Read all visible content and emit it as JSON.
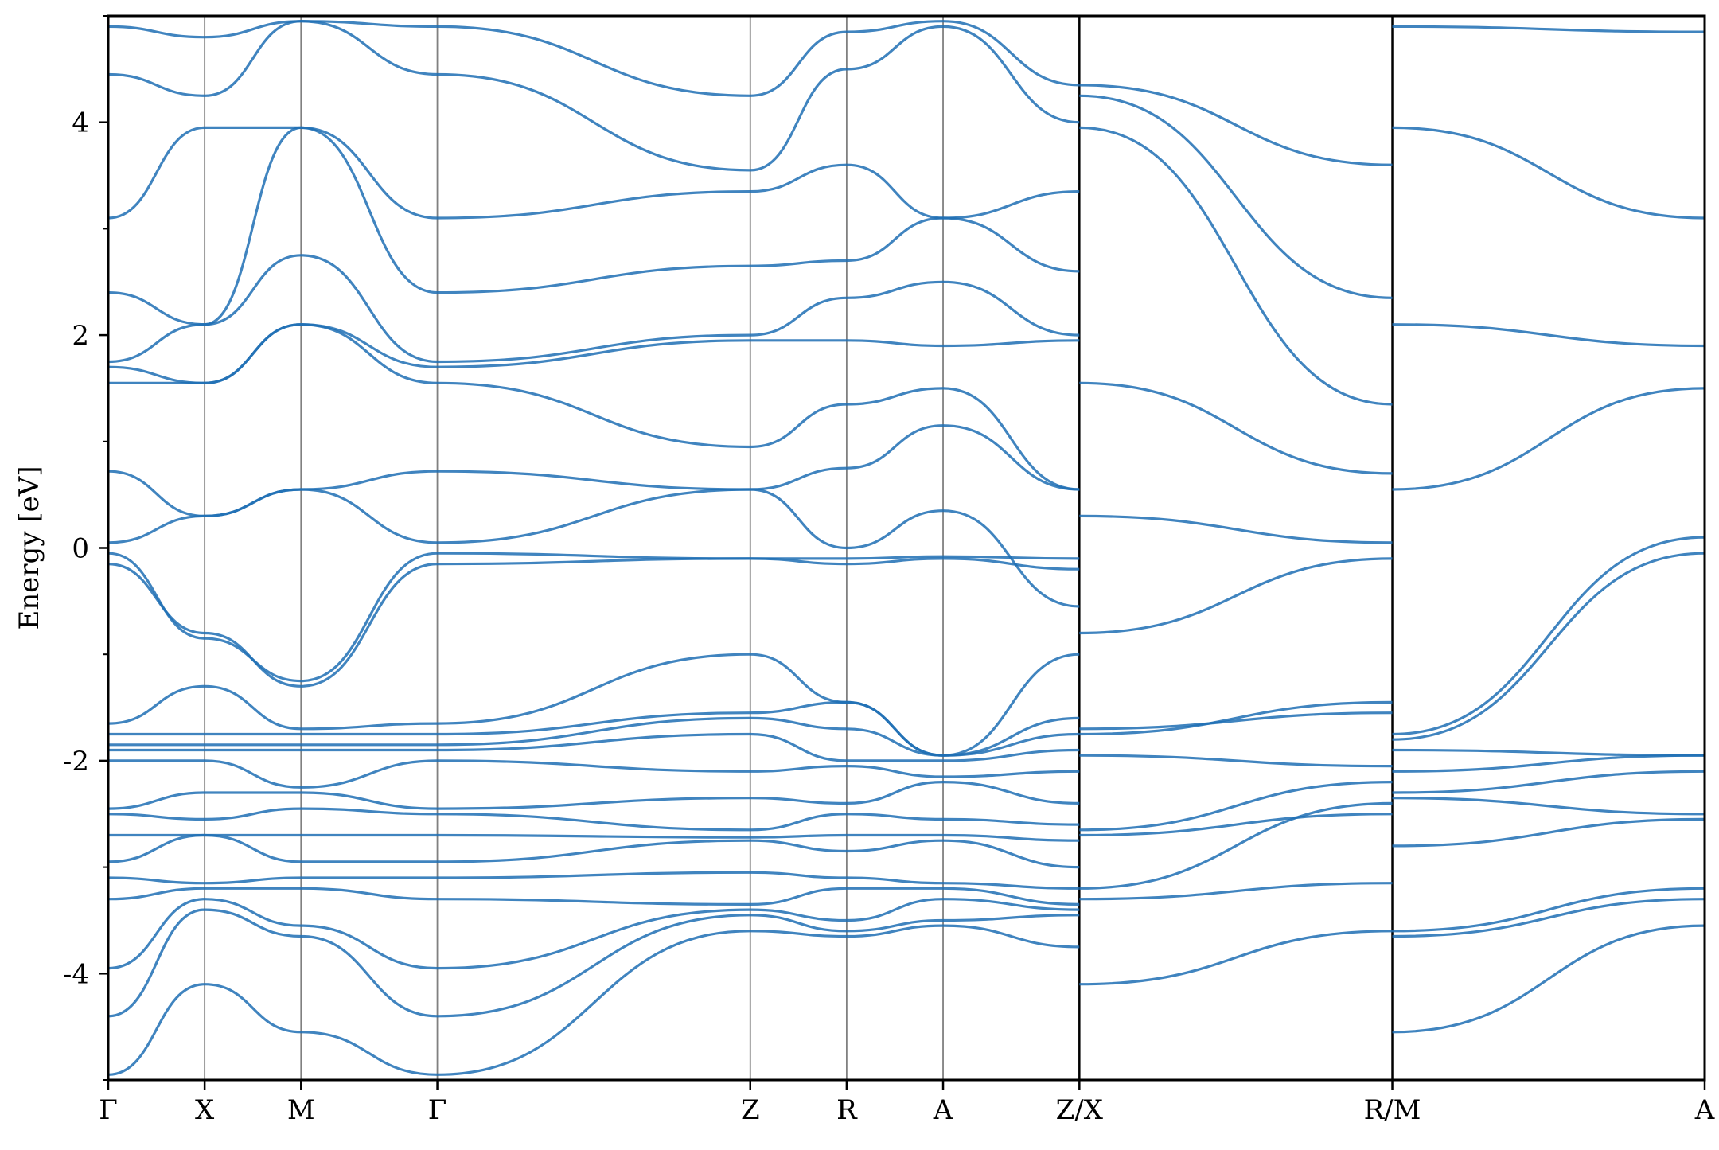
{
  "chart_data": {
    "type": "line",
    "title": "",
    "xlabel": "",
    "ylabel": "Energy [eV]",
    "ylim": [
      -5,
      5
    ],
    "yticks": [
      -4,
      -2,
      0,
      2,
      4
    ],
    "ytick_labels": [
      "-4",
      "-2",
      "0",
      "2",
      "4"
    ],
    "ytick_minor": [
      -5,
      -3,
      -1,
      1,
      3,
      5
    ],
    "band_color": "#1f6fb4",
    "xticks": [
      {
        "label": "Γ",
        "pos": 0.0
      },
      {
        "label": "X",
        "pos": 0.5
      },
      {
        "label": "M",
        "pos": 1.0
      },
      {
        "label": "Γ",
        "pos": 1.707
      },
      {
        "label": "Z",
        "pos": 3.33
      },
      {
        "label": "R",
        "pos": 3.83
      },
      {
        "label": "A",
        "pos": 4.33
      },
      {
        "label": "Z/X",
        "pos": 5.037
      },
      {
        "label": "R/M",
        "pos": 6.66
      },
      {
        "label": "A",
        "pos": 8.28
      }
    ],
    "segment_breaks": [
      5.037,
      6.66
    ],
    "segments": [
      {
        "x": [
          0.0,
          0.5,
          1.0,
          1.707,
          3.33,
          3.83,
          4.33,
          5.037
        ],
        "series": [
          {
            "values": [
              -4.95,
              -4.1,
              -4.55,
              -4.95,
              -3.6,
              -3.65,
              -3.55,
              -3.75
            ]
          },
          {
            "values": [
              -4.4,
              -3.4,
              -3.65,
              -4.4,
              -3.45,
              -3.6,
              -3.5,
              -3.45
            ]
          },
          {
            "values": [
              -3.95,
              -3.3,
              -3.55,
              -3.95,
              -3.4,
              -3.5,
              -3.3,
              -3.4
            ]
          },
          {
            "values": [
              -3.3,
              -3.2,
              -3.2,
              -3.3,
              -3.35,
              -3.2,
              -3.2,
              -3.35
            ]
          },
          {
            "values": [
              -3.1,
              -3.15,
              -3.1,
              -3.1,
              -3.05,
              -3.1,
              -3.15,
              -3.2
            ]
          },
          {
            "values": [
              -2.95,
              -2.7,
              -2.95,
              -2.95,
              -2.75,
              -2.85,
              -2.75,
              -3.0
            ]
          },
          {
            "values": [
              -2.7,
              -2.7,
              -2.7,
              -2.7,
              -2.72,
              -2.7,
              -2.7,
              -2.75
            ]
          },
          {
            "values": [
              -2.5,
              -2.55,
              -2.45,
              -2.5,
              -2.65,
              -2.5,
              -2.55,
              -2.6
            ]
          },
          {
            "values": [
              -2.45,
              -2.3,
              -2.3,
              -2.45,
              -2.35,
              -2.4,
              -2.2,
              -2.4
            ]
          },
          {
            "values": [
              -2.0,
              -2.0,
              -2.25,
              -2.0,
              -2.1,
              -2.05,
              -2.15,
              -2.1
            ]
          },
          {
            "values": [
              -1.9,
              -1.9,
              -1.9,
              -1.9,
              -1.75,
              -2.0,
              -2.0,
              -1.9
            ]
          },
          {
            "values": [
              -1.85,
              -1.85,
              -1.85,
              -1.85,
              -1.6,
              -1.7,
              -1.95,
              -1.75
            ]
          },
          {
            "values": [
              -1.75,
              -1.75,
              -1.75,
              -1.75,
              -1.55,
              -1.45,
              -1.95,
              -1.6
            ]
          },
          {
            "values": [
              -1.65,
              -1.3,
              -1.7,
              -1.65,
              -1.0,
              -1.45,
              -1.95,
              -1.0
            ]
          },
          {
            "values": [
              -0.15,
              -0.8,
              -1.3,
              -0.15,
              -0.1,
              -0.15,
              -0.1,
              -0.2
            ]
          },
          {
            "values": [
              -0.05,
              -0.85,
              -1.25,
              -0.05,
              -0.1,
              -0.1,
              -0.08,
              -0.1
            ]
          },
          {
            "values": [
              0.05,
              0.3,
              0.55,
              0.05,
              0.55,
              0.0,
              0.35,
              -0.55
            ]
          },
          {
            "values": [
              0.72,
              0.3,
              0.55,
              0.72,
              0.55,
              0.75,
              1.15,
              0.55
            ]
          },
          {
            "values": [
              1.55,
              1.55,
              2.1,
              1.55,
              0.95,
              1.35,
              1.5,
              0.55
            ]
          },
          {
            "values": [
              1.7,
              1.55,
              2.1,
              1.7,
              1.95,
              1.95,
              1.9,
              1.95
            ]
          },
          {
            "values": [
              1.75,
              2.1,
              2.75,
              1.75,
              2.0,
              2.35,
              2.5,
              2.0
            ]
          },
          {
            "values": [
              2.4,
              2.1,
              3.95,
              2.4,
              2.65,
              2.7,
              3.1,
              2.6
            ]
          },
          {
            "values": [
              3.1,
              3.95,
              3.95,
              3.1,
              3.35,
              3.6,
              3.1,
              3.35
            ]
          },
          {
            "values": [
              4.45,
              4.25,
              4.95,
              4.45,
              3.55,
              4.5,
              4.9,
              4.0
            ]
          },
          {
            "values": [
              4.9,
              4.8,
              4.95,
              4.9,
              4.25,
              4.85,
              4.95,
              4.35
            ]
          }
        ]
      },
      {
        "x": [
          5.037,
          6.66
        ],
        "series": [
          {
            "values": [
              -4.1,
              -3.6
            ]
          },
          {
            "values": [
              -3.3,
              -3.15
            ]
          },
          {
            "values": [
              -3.2,
              -2.4
            ]
          },
          {
            "values": [
              -2.7,
              -2.5
            ]
          },
          {
            "values": [
              -2.65,
              -2.2
            ]
          },
          {
            "values": [
              -1.95,
              -2.05
            ]
          },
          {
            "values": [
              -1.75,
              -1.45
            ]
          },
          {
            "values": [
              -1.7,
              -1.55
            ]
          },
          {
            "values": [
              -0.8,
              -0.1
            ]
          },
          {
            "values": [
              0.3,
              0.05
            ]
          },
          {
            "values": [
              1.55,
              0.7
            ]
          },
          {
            "values": [
              3.95,
              1.35
            ]
          },
          {
            "values": [
              4.25,
              2.35
            ]
          },
          {
            "values": [
              4.35,
              3.6
            ]
          }
        ]
      },
      {
        "x": [
          6.66,
          8.28
        ],
        "series": [
          {
            "values": [
              -4.55,
              -3.55
            ]
          },
          {
            "values": [
              -3.65,
              -3.3
            ]
          },
          {
            "values": [
              -3.6,
              -3.2
            ]
          },
          {
            "values": [
              -2.8,
              -2.55
            ]
          },
          {
            "values": [
              -2.35,
              -2.5
            ]
          },
          {
            "values": [
              -2.3,
              -2.1
            ]
          },
          {
            "values": [
              -2.1,
              -1.95
            ]
          },
          {
            "values": [
              -1.9,
              -1.95
            ]
          },
          {
            "values": [
              -1.8,
              -0.05
            ]
          },
          {
            "values": [
              -1.75,
              0.1
            ]
          },
          {
            "values": [
              0.55,
              1.5
            ]
          },
          {
            "values": [
              2.1,
              1.9
            ]
          },
          {
            "values": [
              3.95,
              3.1
            ]
          },
          {
            "values": [
              4.9,
              4.85
            ]
          }
        ]
      }
    ]
  }
}
